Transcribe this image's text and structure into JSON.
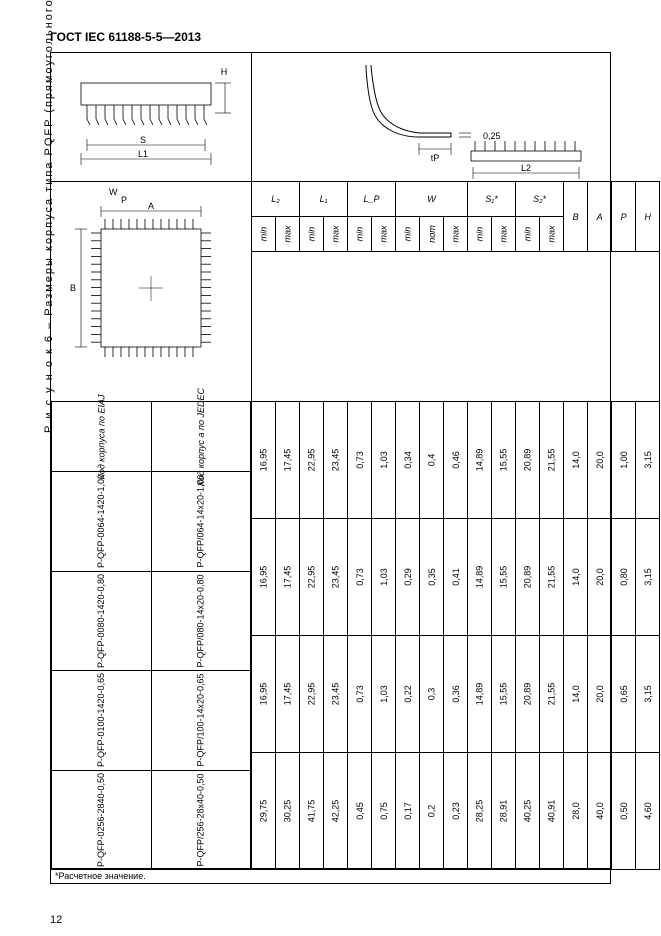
{
  "doc_header": "ГОСТ IEC 61188-5-5—2013",
  "page_number": "12",
  "caption_prefix": "Р и с у н о к  6  –  ",
  "caption_text": "Размеры корпуса типа PQFP (прямоугольного)",
  "footnote": "*Расчетное значение.",
  "dim_labels": {
    "L1": "L1",
    "L2": "L2",
    "S": "S",
    "H": "H",
    "W": "W",
    "P": "P",
    "A": "A",
    "B": "B",
    "t025": "0,25",
    "tP": "tP"
  },
  "table": {
    "code_col1": "Код корпуса по EIAJ",
    "code_col2": "Код корпус а по JEDEC",
    "groups": [
      "L₂",
      "L₁",
      "L_P",
      "W",
      "S₁*",
      "S₂*"
    ],
    "singles": [
      "B",
      "A",
      "P",
      "H"
    ],
    "sub": {
      "min": "min",
      "max": "max",
      "nom": "nom"
    },
    "rows": [
      {
        "eiaj": "P-QFP-0064-1420-1,00",
        "jedec": "P-QFP/064-14x20-1,00",
        "L2": [
          "16,95",
          "17,45"
        ],
        "L1": [
          "22,95",
          "23,45"
        ],
        "LP": [
          "0,73",
          "1,03"
        ],
        "W": [
          "0,34",
          "0,4",
          "0,46"
        ],
        "S1": [
          "14,89",
          "15,55"
        ],
        "S2": [
          "20,89",
          "21,55"
        ],
        "B": "14,0",
        "A": "20,0",
        "P": "1,00",
        "H": "3,15"
      },
      {
        "eiaj": "P-QFP-0080-1420-0,80",
        "jedec": "P-QFP/080-14x20-0,80",
        "L2": [
          "16,95",
          "17,45"
        ],
        "L1": [
          "22,95",
          "23,45"
        ],
        "LP": [
          "0,73",
          "1,03"
        ],
        "W": [
          "0,29",
          "0,35",
          "0,41"
        ],
        "S1": [
          "14,89",
          "15,55"
        ],
        "S2": [
          "20,89",
          "21,55"
        ],
        "B": "14,0",
        "A": "20,0",
        "P": "0,80",
        "H": "3,15"
      },
      {
        "eiaj": "P-QFP-0100-1420-0,65",
        "jedec": "P-QFP/100-14x20-0,65",
        "L2": [
          "16,95",
          "17,45"
        ],
        "L1": [
          "22,95",
          "23,45"
        ],
        "LP": [
          "0,73",
          "1,03"
        ],
        "W": [
          "0,22",
          "0,3",
          "0,36"
        ],
        "S1": [
          "14,89",
          "15,55"
        ],
        "S2": [
          "20,89",
          "21,55"
        ],
        "B": "14,0",
        "A": "20,0",
        "P": "0,65",
        "H": "3,15"
      },
      {
        "eiaj": "P-QFP-0256-2840-0,50",
        "jedec": "P-QFP/256-28x40-0,50",
        "L2": [
          "29,75",
          "30,25"
        ],
        "L1": [
          "41,75",
          "42,25"
        ],
        "LP": [
          "0,45",
          "0,75"
        ],
        "W": [
          "0,17",
          "0,2",
          "0,23"
        ],
        "S1": [
          "28,25",
          "28,91"
        ],
        "S2": [
          "40,25",
          "40,91"
        ],
        "B": "28,0",
        "A": "40,0",
        "P": "0,50",
        "H": "4,60"
      }
    ]
  },
  "colors": {
    "line": "#000000",
    "bg": "#ffffff"
  }
}
